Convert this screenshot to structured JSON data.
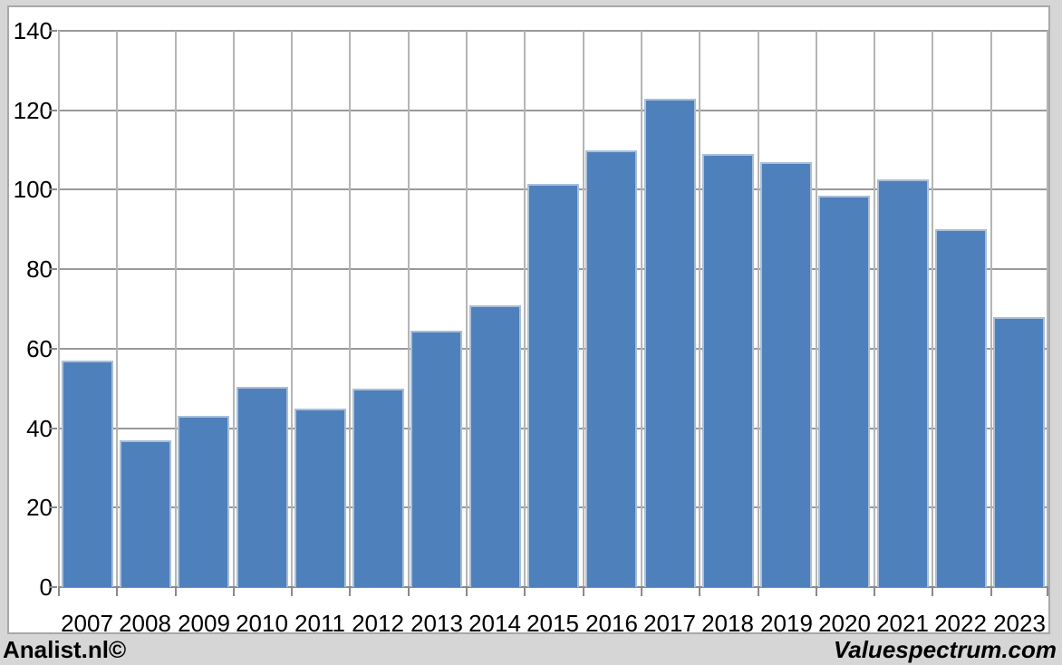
{
  "chart_data": {
    "type": "bar",
    "title": "",
    "xlabel": "",
    "ylabel": "",
    "categories": [
      "2007",
      "2008",
      "2009",
      "2010",
      "2011",
      "2012",
      "2013",
      "2014",
      "2015",
      "2016",
      "2017",
      "2018",
      "2019",
      "2020",
      "2021",
      "2022",
      "2023"
    ],
    "values": [
      57,
      37,
      43,
      50.5,
      45,
      50,
      64.5,
      71,
      101.5,
      110,
      123,
      109,
      107,
      98.5,
      102.5,
      90,
      68
    ],
    "ylim": [
      0,
      140
    ],
    "yticks": [
      0,
      20,
      40,
      60,
      80,
      100,
      120,
      140
    ],
    "grid": true,
    "legend": "none",
    "colors": {
      "bar_fill": "#4e80bc",
      "bar_border": "#a9bed8",
      "grid_horizontal": "#999999",
      "grid_vertical": "#b5b5b5",
      "axis_line": "#8a8a8a",
      "tick": "#8a8a8a",
      "panel_background": "#ffffff",
      "outer_background": "#d6d6d6",
      "panel_border": "#a8a8a8",
      "text": "#000000"
    }
  },
  "footer": {
    "left_brand": "Analist.nl©",
    "right_brand": "Valuespectrum.com"
  }
}
